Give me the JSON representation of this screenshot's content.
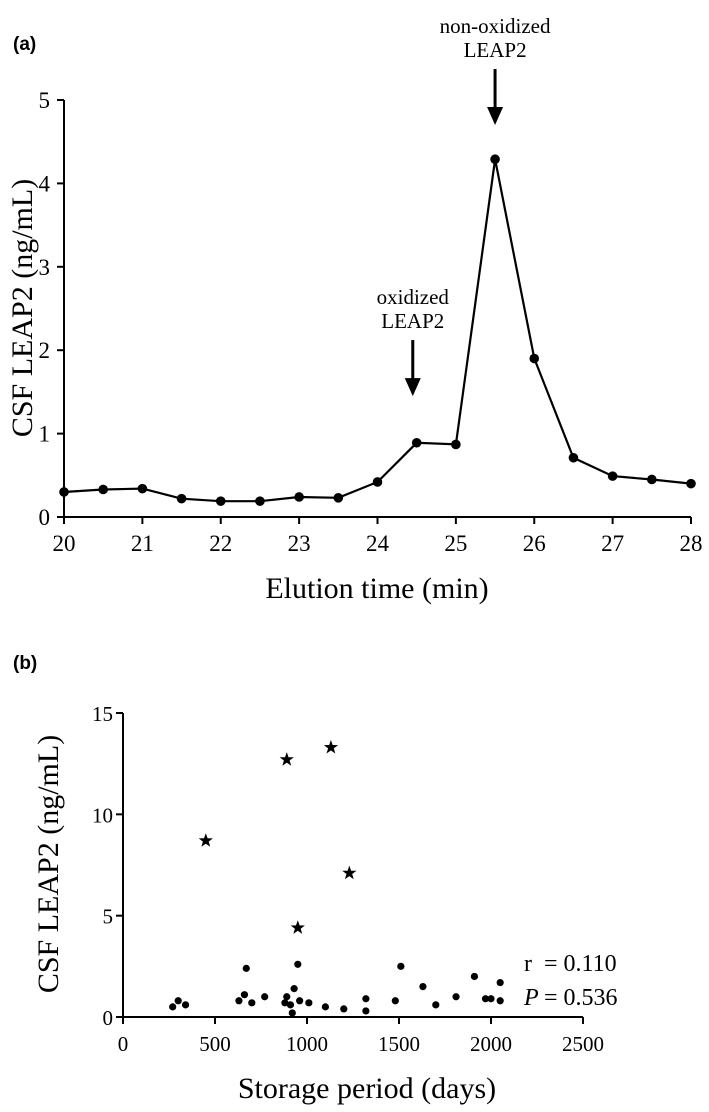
{
  "chart_data": [
    {
      "panel": "(a)",
      "type": "line",
      "xlabel": "Elution time (min)",
      "ylabel": "CSF LEAP2 (ng/mL)",
      "xlim": [
        20,
        28
      ],
      "ylim": [
        0,
        5
      ],
      "xticks": [
        20,
        21,
        22,
        23,
        24,
        25,
        26,
        27,
        28
      ],
      "yticks": [
        0,
        1,
        2,
        3,
        4,
        5
      ],
      "x": [
        20,
        20.5,
        21,
        21.5,
        22,
        22.5,
        23,
        23.5,
        24,
        24.5,
        25,
        25.5,
        26,
        26.5,
        27,
        27.5,
        28
      ],
      "y": [
        0.3,
        0.33,
        0.34,
        0.22,
        0.19,
        0.19,
        0.24,
        0.23,
        0.42,
        0.89,
        0.87,
        4.29,
        1.9,
        0.71,
        0.49,
        0.45,
        0.4
      ],
      "annotations": [
        {
          "lines": [
            "oxidized",
            "LEAP2"
          ],
          "x": 24.45,
          "arrow_tip_y": 1.45
        },
        {
          "lines": [
            "non-oxidized",
            "LEAP2"
          ],
          "x": 25.5,
          "arrow_tip_y": 4.7
        }
      ]
    },
    {
      "panel": "(b)",
      "type": "scatter",
      "xlabel": "Storage period (days)",
      "ylabel": "CSF LEAP2 (ng/mL)",
      "xlim": [
        0,
        2500
      ],
      "ylim": [
        0,
        15
      ],
      "xticks": [
        0,
        500,
        1000,
        1500,
        2000,
        2500
      ],
      "yticks": [
        0,
        5,
        10,
        15
      ],
      "series": [
        {
          "marker": "dot",
          "points": [
            [
              270,
              0.5
            ],
            [
              300,
              0.8
            ],
            [
              340,
              0.6
            ],
            [
              630,
              0.8
            ],
            [
              660,
              1.1
            ],
            [
              670,
              2.4
            ],
            [
              700,
              0.7
            ],
            [
              770,
              1.0
            ],
            [
              880,
              0.7
            ],
            [
              890,
              1.0
            ],
            [
              910,
              0.6
            ],
            [
              920,
              0.2
            ],
            [
              930,
              1.4
            ],
            [
              950,
              2.6
            ],
            [
              960,
              0.8
            ],
            [
              1010,
              0.7
            ],
            [
              1100,
              0.5
            ],
            [
              1200,
              0.4
            ],
            [
              1320,
              0.9
            ],
            [
              1320,
              0.3
            ],
            [
              1480,
              0.8
            ],
            [
              1510,
              2.5
            ],
            [
              1630,
              1.5
            ],
            [
              1700,
              0.6
            ],
            [
              1810,
              1.0
            ],
            [
              1910,
              2.0
            ],
            [
              1970,
              0.9
            ],
            [
              2000,
              0.9
            ],
            [
              2050,
              1.7
            ],
            [
              2050,
              0.8
            ]
          ]
        },
        {
          "marker": "star",
          "points": [
            [
              450,
              8.7
            ],
            [
              890,
              12.7
            ],
            [
              950,
              4.4
            ],
            [
              1130,
              13.3
            ],
            [
              1230,
              7.1
            ]
          ]
        }
      ],
      "stats": {
        "r_label": "r",
        "r_value": "= 0.110",
        "p_label": "P",
        "p_value": "= 0.536"
      }
    }
  ]
}
